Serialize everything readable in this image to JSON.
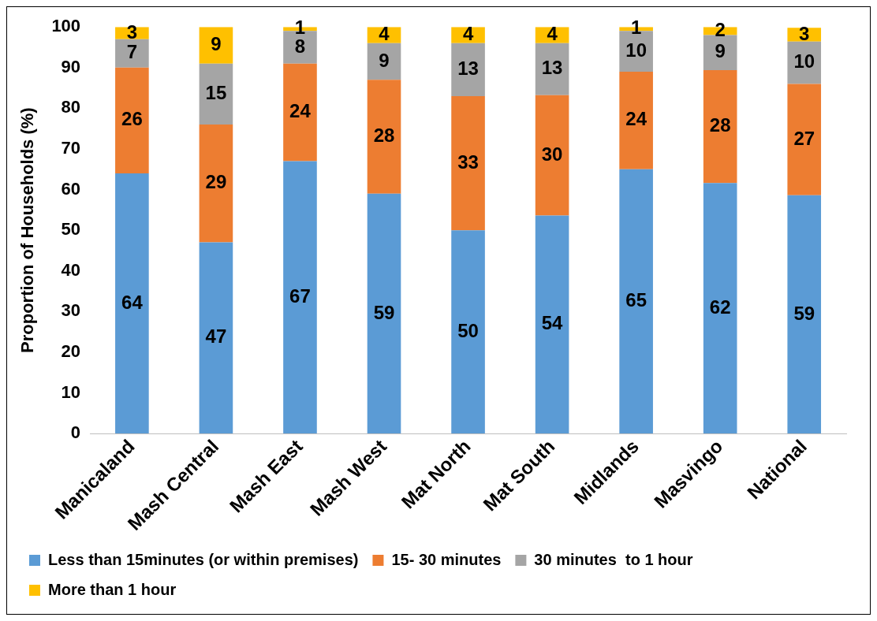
{
  "chart_data": {
    "type": "bar",
    "stacked": true,
    "ylabel": "Proportion of Households (%)",
    "ylim": [
      0,
      100
    ],
    "yticks": [
      0,
      10,
      20,
      30,
      40,
      50,
      60,
      70,
      80,
      90,
      100
    ],
    "grid": false,
    "legend": "bottom",
    "categories": [
      "Manicaland",
      "Mash Central",
      "Mash East",
      "Mash West",
      "Mat North",
      "Mat South",
      "Midlands",
      "Masvingo",
      "National"
    ],
    "series": [
      {
        "name": "Less than 15minutes (or within premises)",
        "color": "#5b9bd5",
        "values": [
          64,
          47,
          67,
          59,
          50,
          53.6,
          65,
          61.6,
          58.6
        ],
        "value_labels": [
          "64",
          "47",
          "67",
          "59",
          "50",
          "54",
          "65",
          "62",
          "59"
        ]
      },
      {
        "name": "15- 30 minutes",
        "color": "#ed7d31",
        "values": [
          26,
          29,
          24,
          28,
          33,
          29.6,
          24,
          27.8,
          27.4
        ],
        "value_labels": [
          "26",
          "29",
          "24",
          "28",
          "33",
          "30",
          "24",
          "28",
          "27"
        ]
      },
      {
        "name": "30 minutes  to 1 hour",
        "color": "#a5a5a5",
        "values": [
          7,
          15,
          8,
          9,
          13,
          12.8,
          10,
          8.6,
          10.4
        ],
        "value_labels": [
          "7",
          "15",
          "8",
          "9",
          "13",
          "13",
          "10",
          "9",
          "10"
        ]
      },
      {
        "name": "More than 1 hour",
        "color": "#ffc000",
        "values": [
          3,
          9,
          1,
          4,
          4,
          4,
          1,
          2,
          3.4
        ],
        "value_labels": [
          "3",
          "9",
          "1",
          "4",
          "4",
          "4",
          "1",
          "2",
          "3"
        ]
      }
    ]
  }
}
